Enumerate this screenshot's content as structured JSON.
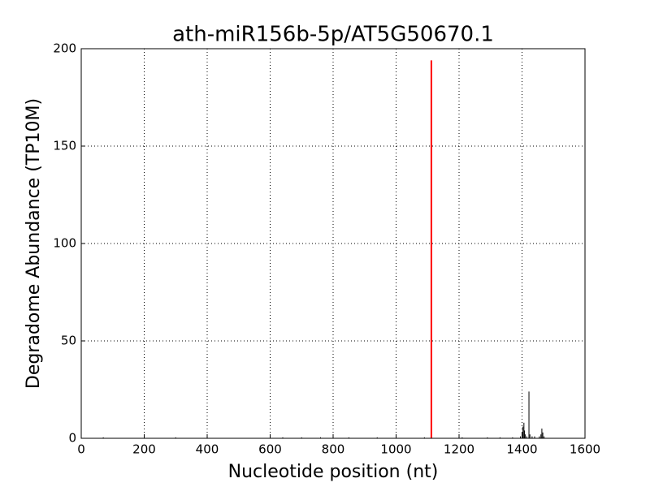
{
  "chart_data": {
    "type": "bar",
    "title": "ath-miR156b-5p/AT5G50670.1",
    "x_label": "Nucleotide position (nt)",
    "y_label": "Degradome Abundance (TP10M)",
    "xlim": [
      0,
      1600
    ],
    "xticks": [
      0,
      200,
      400,
      600,
      800,
      1000,
      1200,
      1400,
      1600
    ],
    "ylim": [
      0,
      200
    ],
    "yticks": [
      0,
      50,
      100,
      150,
      200
    ],
    "grid": true,
    "series": [
      {
        "color": "#000000",
        "x": [
          70,
          300,
          640,
          700,
          760,
          850,
          940,
          1000,
          1090,
          1210,
          1290,
          1330,
          1370,
          1395,
          1400,
          1403,
          1406,
          1408,
          1410,
          1415,
          1422,
          1425,
          1432,
          1440,
          1455,
          1460,
          1463,
          1466,
          1470
        ],
        "values": [
          0.5,
          0.5,
          0.5,
          0.5,
          0.5,
          0.5,
          0.5,
          0.5,
          0.5,
          0.5,
          0.5,
          0.5,
          0.5,
          1,
          3,
          6,
          8,
          4,
          2,
          1,
          24,
          2,
          1,
          1,
          1,
          2,
          5,
          3,
          1
        ]
      },
      {
        "color": "#ff0000",
        "x": [
          1112
        ],
        "values": [
          194
        ]
      }
    ]
  }
}
